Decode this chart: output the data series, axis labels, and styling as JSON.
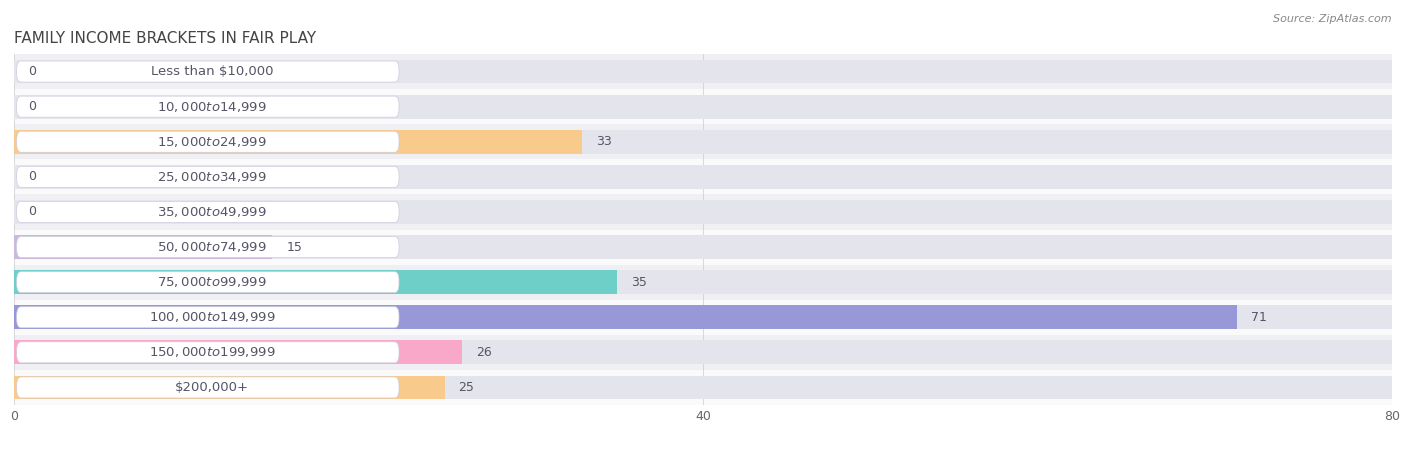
{
  "title": "Family Income Brackets in Fair Play",
  "source": "Source: ZipAtlas.com",
  "categories": [
    "Less than $10,000",
    "$10,000 to $14,999",
    "$15,000 to $24,999",
    "$25,000 to $34,999",
    "$35,000 to $49,999",
    "$50,000 to $74,999",
    "$75,000 to $99,999",
    "$100,000 to $149,999",
    "$150,000 to $199,999",
    "$200,000+"
  ],
  "values": [
    0,
    0,
    33,
    0,
    0,
    15,
    35,
    71,
    26,
    25
  ],
  "bar_colors": [
    "#b0b8e8",
    "#f5a8bc",
    "#f8ca8c",
    "#f5a8bc",
    "#a8c4e8",
    "#cbb8dc",
    "#6ecfc8",
    "#9898d8",
    "#f8a8c8",
    "#f8ca8c"
  ],
  "row_bg_colors": [
    "#f0f0f4",
    "#fafafa"
  ],
  "bar_bg_color": "#e4e4ec",
  "white": "#ffffff",
  "text_color": "#555566",
  "title_color": "#444444",
  "source_color": "#888888",
  "xlim": [
    0,
    80
  ],
  "xticks": [
    0,
    40,
    80
  ],
  "bar_height": 0.68,
  "title_fontsize": 11,
  "label_fontsize": 9.5,
  "value_fontsize": 9,
  "tick_fontsize": 9
}
